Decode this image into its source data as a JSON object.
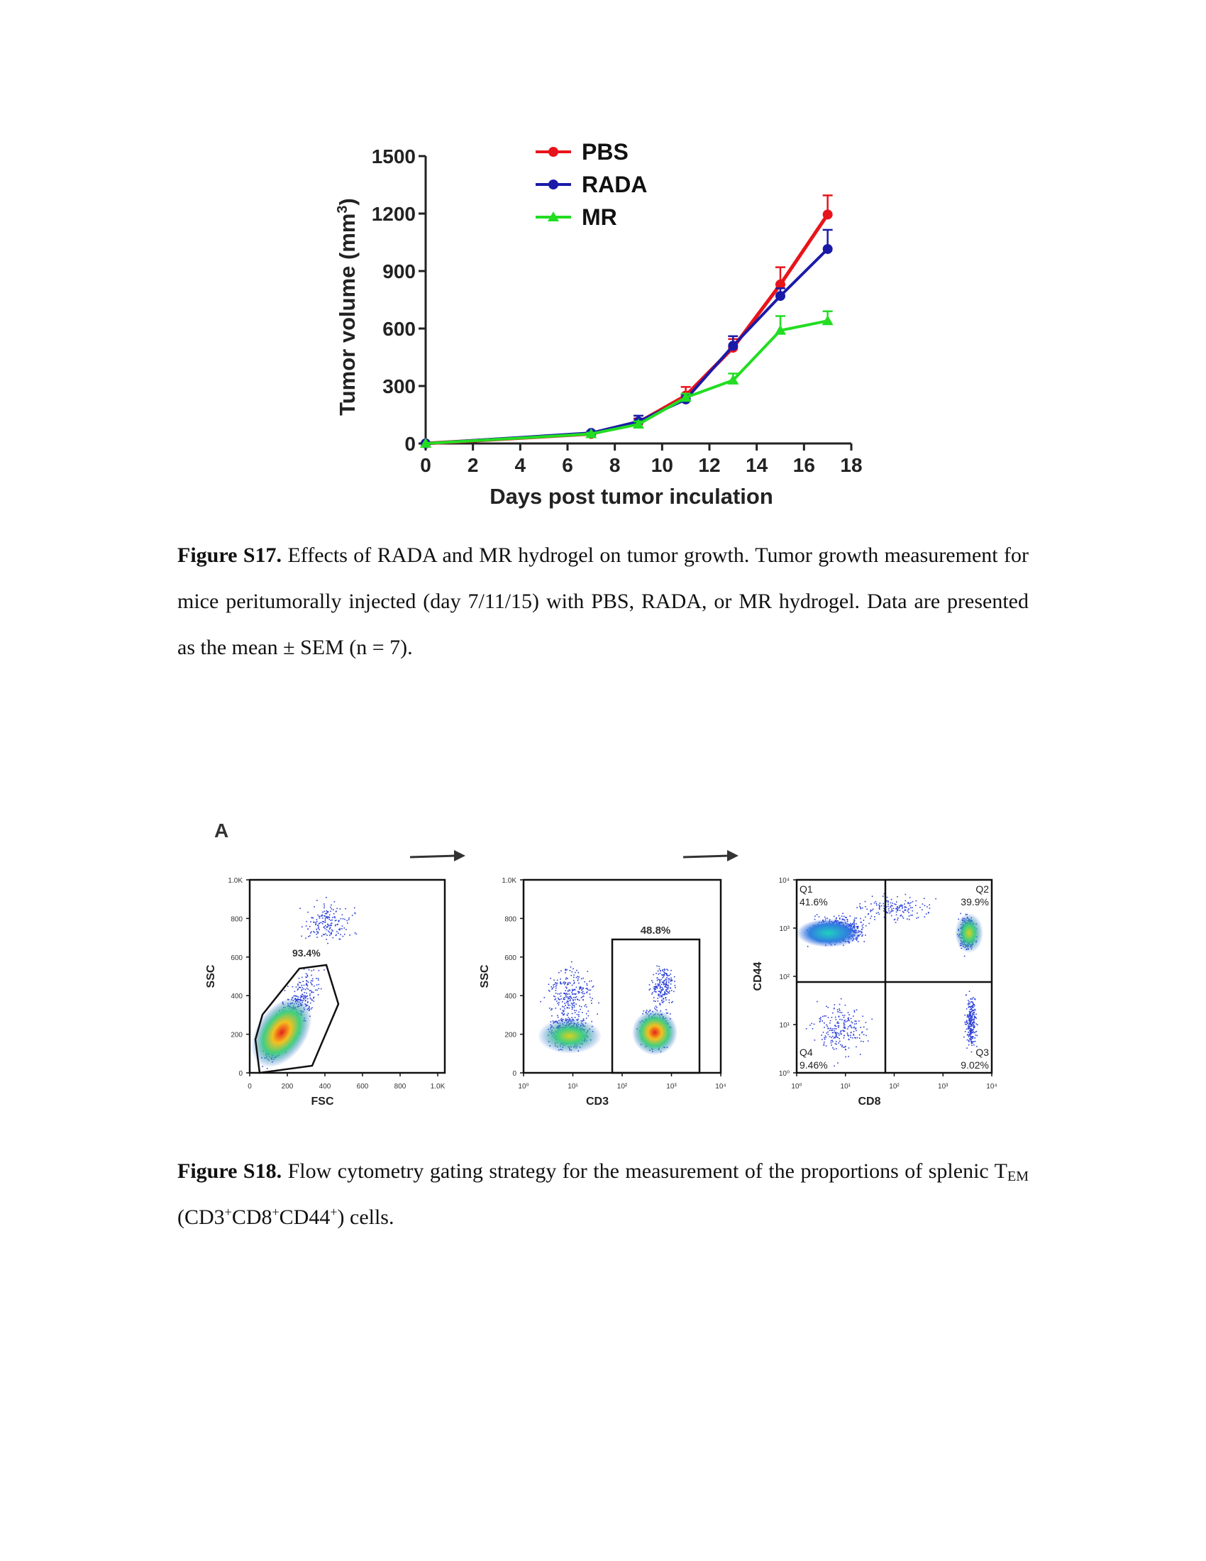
{
  "fig17": {
    "caption_label": "Figure S17.",
    "caption_text": " Effects of RADA and MR hydrogel on tumor growth. Tumor growth measurement for mice peritumorally injected (day 7/11/15) with PBS, RADA, or MR hydrogel. Data are presented as the mean ± SEM (n = 7).",
    "chart_data": {
      "type": "line",
      "xlabel": "Days post tumor inculation",
      "ylabel": "Tumor volume (mm",
      "ylabel_sup": "3",
      "ylabel_close": ")",
      "xlim": [
        0,
        18
      ],
      "ylim": [
        0,
        1500
      ],
      "xticks": [
        "0",
        "2",
        "4",
        "6",
        "8",
        "10",
        "12",
        "14",
        "16",
        "18"
      ],
      "yticks": [
        "0",
        "300",
        "600",
        "900",
        "1200",
        "1500"
      ],
      "legend_position": "top",
      "series": [
        {
          "name": "PBS",
          "color": "#e8141b",
          "marker": "circle",
          "x": [
            0,
            7,
            9,
            11,
            13,
            15,
            17
          ],
          "y": [
            0,
            50,
            110,
            250,
            500,
            830,
            1195
          ],
          "err": [
            0,
            8,
            20,
            45,
            45,
            90,
            100
          ]
        },
        {
          "name": "RADA",
          "color": "#1a1aa8",
          "marker": "circle",
          "x": [
            0,
            7,
            9,
            11,
            13,
            15,
            17
          ],
          "y": [
            0,
            55,
            115,
            230,
            510,
            770,
            1015
          ],
          "err": [
            0,
            8,
            30,
            25,
            50,
            40,
            100
          ]
        },
        {
          "name": "MR",
          "color": "#22dd22",
          "marker": "triangle",
          "x": [
            0,
            7,
            9,
            11,
            13,
            15,
            17
          ],
          "y": [
            0,
            50,
            100,
            240,
            330,
            590,
            640
          ],
          "err": [
            0,
            6,
            15,
            20,
            35,
            75,
            50
          ]
        }
      ]
    }
  },
  "fig18": {
    "panel_label": "A",
    "caption_label": "Figure S18.",
    "caption_text_1": " Flow cytometry gating strategy for the measurement of the proportions of splenic T",
    "caption_sub": "EM",
    "caption_text_2": " (CD3",
    "sup1": "+",
    "caption_text_3": "CD8",
    "sup2": "+",
    "caption_text_4": "CD44",
    "sup3": "+",
    "caption_text_5": ") cells.",
    "plots": [
      {
        "xlabel": "FSC",
        "ylabel": "SSC",
        "xticks": [
          "0",
          "200",
          "400",
          "600",
          "800",
          "1.0K"
        ],
        "yticks": [
          "0",
          "200",
          "400",
          "600",
          "800",
          "1.0K"
        ],
        "gate_label": "93.4%"
      },
      {
        "xlabel": "CD3",
        "ylabel": "SSC",
        "xticks": [
          "10⁰",
          "10¹",
          "10²",
          "10³",
          "10⁴"
        ],
        "yticks": [
          "0",
          "200",
          "400",
          "600",
          "800",
          "1.0K"
        ],
        "gate_label": "48.8%"
      },
      {
        "xlabel": "CD8",
        "ylabel": "CD44",
        "xticks": [
          "10⁰",
          "10¹",
          "10²",
          "10³",
          "10⁴"
        ],
        "yticks": [
          "10⁰",
          "10¹",
          "10²",
          "10³",
          "10⁴"
        ],
        "quadrants": [
          {
            "name": "Q1",
            "value": "41.6%"
          },
          {
            "name": "Q2",
            "value": "39.9%"
          },
          {
            "name": "Q3",
            "value": "9.02%"
          },
          {
            "name": "Q4",
            "value": "9.46%"
          }
        ]
      }
    ]
  }
}
